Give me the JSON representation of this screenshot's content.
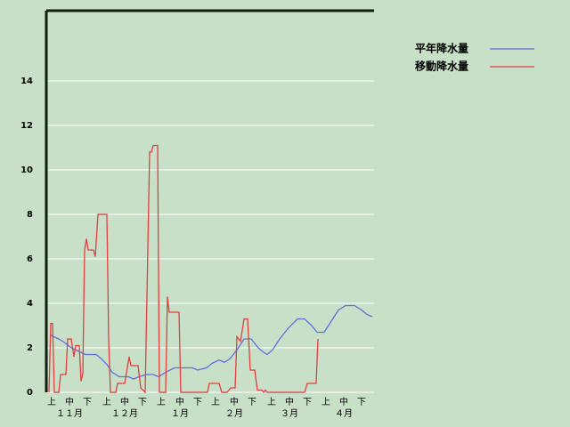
{
  "chart_data": {
    "type": "line",
    "xlim": [
      0,
      184
    ],
    "xticks": [
      {
        "value": 3,
        "label": "上"
      },
      {
        "value": 13,
        "label": "中"
      },
      {
        "value": 23,
        "label": "下"
      },
      {
        "value": 34,
        "label": "上"
      },
      {
        "value": 44,
        "label": "中"
      },
      {
        "value": 54,
        "label": "下"
      },
      {
        "value": 64.5,
        "label": "上"
      },
      {
        "value": 75,
        "label": "中"
      },
      {
        "value": 85,
        "label": "下"
      },
      {
        "value": 95,
        "label": "上"
      },
      {
        "value": 105.5,
        "label": "中"
      },
      {
        "value": 115.5,
        "label": "下"
      },
      {
        "value": 126.5,
        "label": "上"
      },
      {
        "value": 136.5,
        "label": "中"
      },
      {
        "value": 146.5,
        "label": "下"
      },
      {
        "value": 157,
        "label": "上"
      },
      {
        "value": 167,
        "label": "中"
      },
      {
        "value": 177,
        "label": "下"
      }
    ],
    "months": [
      {
        "value": 13,
        "label": "１１月"
      },
      {
        "value": 44,
        "label": "１２月"
      },
      {
        "value": 75,
        "label": "１月"
      },
      {
        "value": 105.5,
        "label": "２月"
      },
      {
        "value": 136.5,
        "label": "３月"
      },
      {
        "value": 167,
        "label": "４月"
      }
    ],
    "ylim": [
      0,
      17.16
    ],
    "yticks": [
      0,
      2,
      4,
      6,
      8,
      10,
      12,
      14
    ],
    "grid": true,
    "series": [
      {
        "name": "平年降水量",
        "color": "#6070e0",
        "x": [
          2,
          4,
          7,
          10,
          14,
          18,
          22,
          28,
          31,
          34,
          37,
          41,
          46,
          49,
          52,
          56,
          60,
          63,
          67,
          72,
          82,
          85,
          90,
          93,
          97,
          100,
          103,
          107,
          111,
          115,
          119,
          122,
          124,
          127,
          131,
          136,
          141,
          145,
          149,
          152,
          156,
          160,
          164,
          168,
          173,
          177,
          180,
          183
        ],
        "values": [
          2.6,
          2.5,
          2.4,
          2.25,
          2.0,
          1.85,
          1.7,
          1.7,
          1.5,
          1.25,
          0.9,
          0.7,
          0.7,
          0.6,
          0.7,
          0.8,
          0.8,
          0.7,
          0.9,
          1.1,
          1.1,
          1.0,
          1.1,
          1.3,
          1.45,
          1.35,
          1.5,
          1.9,
          2.4,
          2.4,
          2.0,
          1.8,
          1.7,
          1.9,
          2.4,
          2.9,
          3.3,
          3.3,
          3.0,
          2.7,
          2.7,
          3.2,
          3.7,
          3.9,
          3.9,
          3.7,
          3.5,
          3.4
        ]
      },
      {
        "name": "移動降水量",
        "color": "#e04040",
        "x": [
          1.5,
          2.5,
          3.5,
          4.5,
          7,
          8,
          11,
          12,
          14,
          15.5,
          16.5,
          18.5,
          19.5,
          20.5,
          21.5,
          22.5,
          23.5,
          26.5,
          27.5,
          29,
          34,
          35,
          36,
          39,
          40,
          44,
          46.5,
          47.5,
          51.5,
          53,
          55.5,
          58,
          59,
          60,
          62.5,
          63.5,
          67,
          68,
          69,
          74.5,
          75.5,
          90.5,
          91.5,
          97,
          98.5,
          101.5,
          103.5,
          106,
          107,
          109,
          111,
          113,
          114.5,
          117,
          118.5,
          121,
          122,
          123,
          124,
          145,
          146.5,
          151.5,
          152.5
        ],
        "values": [
          0,
          3.1,
          3.1,
          0,
          0,
          0.8,
          0.8,
          2.4,
          2.4,
          1.6,
          2.1,
          2.1,
          0.5,
          0.85,
          6.4,
          6.9,
          6.4,
          6.4,
          6.1,
          8,
          8,
          2.4,
          0,
          0,
          0.4,
          0.4,
          1.6,
          1.2,
          1.2,
          0.2,
          0,
          10.8,
          10.8,
          11.1,
          11.1,
          0,
          0,
          4.3,
          3.6,
          3.6,
          0,
          0,
          0.4,
          0.4,
          0,
          0,
          0.2,
          0.2,
          2.5,
          2.3,
          3.3,
          3.3,
          1.0,
          1.0,
          0.1,
          0.1,
          0,
          0.1,
          0,
          0,
          0.4,
          0.4,
          2.4
        ]
      }
    ]
  }
}
